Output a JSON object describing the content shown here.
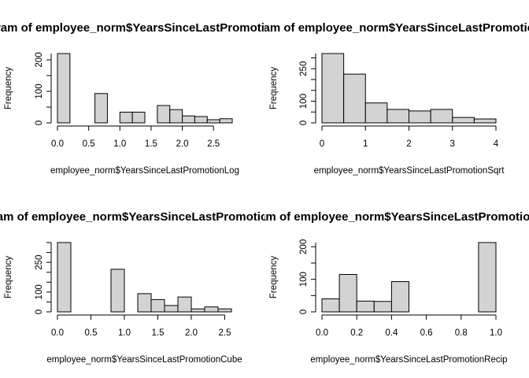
{
  "chart_data": [
    {
      "type": "bar",
      "title": "Histogram of employee_norm$YearsSinceLastPromotionLog",
      "xlabel": "employee_norm$YearsSinceLastPromotionLog",
      "ylabel": "Frequency",
      "breaks": [
        0,
        0.2,
        0.4,
        0.6,
        0.8,
        1.0,
        1.2,
        1.4,
        1.6,
        1.8,
        2.0,
        2.2,
        2.4,
        2.6,
        2.8
      ],
      "values": [
        220,
        0,
        0,
        93,
        0,
        34,
        34,
        0,
        55,
        42,
        22,
        20,
        10,
        13
      ],
      "xlim": [
        0,
        2.8
      ],
      "ylim": [
        0,
        220
      ],
      "xticks": [
        0.0,
        0.5,
        1.0,
        1.5,
        2.0,
        2.5
      ],
      "xtick_labels": [
        "0.0",
        "0.5",
        "1.0",
        "1.5",
        "2.0",
        "2.5"
      ],
      "yticks": [
        0,
        100,
        200
      ],
      "ytick_labels": [
        "0",
        "100",
        "200"
      ],
      "grid": false
    },
    {
      "type": "bar",
      "title": "Histogram of employee_norm$YearsSinceLastPromotionSqrt",
      "xlabel": "employee_norm$YearsSinceLastPromotionSqrt",
      "ylabel": "Frequency",
      "breaks": [
        0,
        0.5,
        1.0,
        1.5,
        2.0,
        2.5,
        3.0,
        3.5,
        4.0
      ],
      "values": [
        320,
        225,
        92,
        62,
        55,
        62,
        25,
        18
      ],
      "xlim": [
        0,
        4
      ],
      "ylim": [
        0,
        320
      ],
      "xticks": [
        0,
        1,
        2,
        3,
        4
      ],
      "xtick_labels": [
        "0",
        "1",
        "2",
        "3",
        "4"
      ],
      "yticks": [
        0,
        100,
        250
      ],
      "ytick_labels": [
        "0",
        "100",
        "250"
      ],
      "grid": false
    },
    {
      "type": "bar",
      "title": "Histogram of employee_norm$YearsSinceLastPromotionCube",
      "xlabel": "employee_norm$YearsSinceLastPromotionCube",
      "ylabel": "Frequency",
      "breaks": [
        0,
        0.2,
        0.4,
        0.6,
        0.8,
        1.0,
        1.2,
        1.4,
        1.6,
        1.8,
        2.0,
        2.2,
        2.4,
        2.6
      ],
      "values": [
        350,
        0,
        0,
        0,
        215,
        0,
        92,
        62,
        32,
        75,
        15,
        25,
        15
      ],
      "xlim": [
        0,
        2.6
      ],
      "ylim": [
        0,
        350
      ],
      "xticks": [
        0.0,
        0.5,
        1.0,
        1.5,
        2.0,
        2.5
      ],
      "xtick_labels": [
        "0.0",
        "0.5",
        "1.0",
        "1.5",
        "2.0",
        "2.5"
      ],
      "yticks": [
        0,
        100,
        250
      ],
      "ytick_labels": [
        "0",
        "100",
        "250"
      ],
      "grid": false
    },
    {
      "type": "bar",
      "title": "Histogram of employee_norm$YearsSinceLastPromotionRecip",
      "xlabel": "employee_norm$YearsSinceLastPromotionRecip",
      "ylabel": "Frequency",
      "breaks": [
        0,
        0.1,
        0.2,
        0.3,
        0.4,
        0.5,
        0.6,
        0.7,
        0.8,
        0.9,
        1.0
      ],
      "values": [
        40,
        115,
        33,
        32,
        93,
        0,
        0,
        0,
        0,
        213
      ],
      "xlim": [
        0,
        1
      ],
      "ylim": [
        0,
        213
      ],
      "xticks": [
        0.0,
        0.2,
        0.4,
        0.6,
        0.8,
        1.0
      ],
      "xtick_labels": [
        "0.0",
        "0.2",
        "0.4",
        "0.6",
        "0.8",
        "1.0"
      ],
      "yticks": [
        0,
        100,
        200
      ],
      "ytick_labels": [
        "0",
        "100",
        "200"
      ],
      "grid": false
    }
  ]
}
